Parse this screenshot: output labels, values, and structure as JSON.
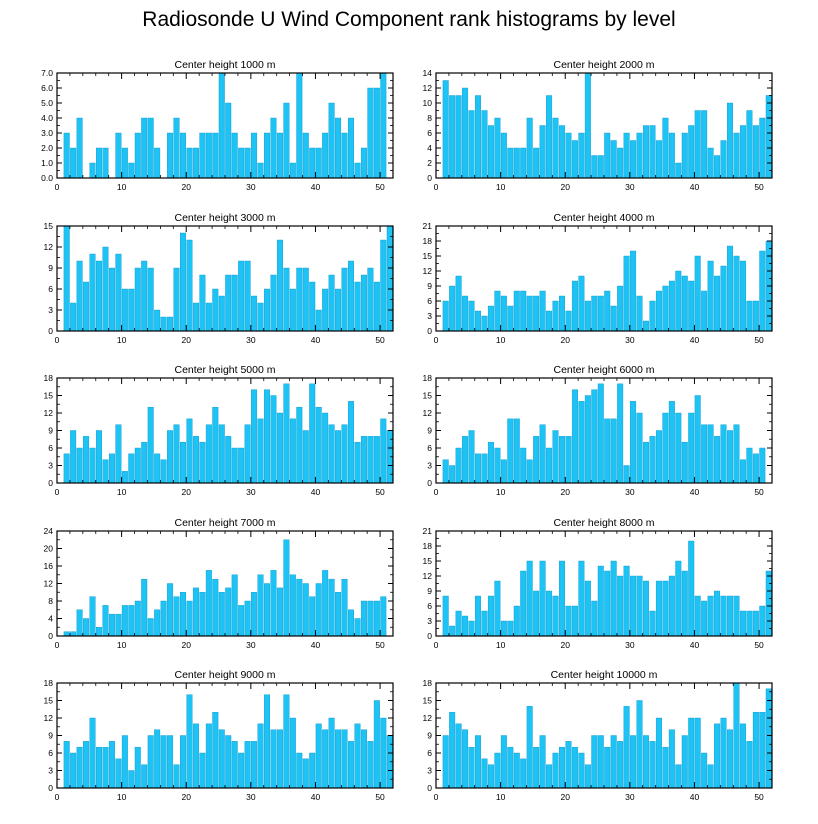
{
  "title": "Radiosonde U Wind Component rank histograms by level",
  "colors": {
    "bar": "#1ec3f5",
    "bar_edge": "#0b95c8",
    "axis": "#000000"
  },
  "chart_data": [
    {
      "type": "bar",
      "title": "Center height 1000 m",
      "ylim": [
        0,
        7
      ],
      "yticks": [
        "0.0",
        "1.0",
        "2.0",
        "3.0",
        "4.0",
        "5.0",
        "6.0",
        "7.0"
      ],
      "xlim": [
        0,
        52
      ],
      "xticks": [
        "0",
        "10",
        "20",
        "30",
        "40",
        "50"
      ],
      "x": [
        0,
        1,
        2,
        3,
        4,
        5,
        6,
        7,
        8,
        9,
        10,
        11,
        12,
        13,
        14,
        15,
        16,
        17,
        18,
        19,
        20,
        21,
        22,
        23,
        24,
        25,
        26,
        27,
        28,
        29,
        30,
        31,
        32,
        33,
        34,
        35,
        36,
        37,
        38,
        39,
        40,
        41,
        42,
        43,
        44,
        45,
        46,
        47,
        48,
        49,
        50,
        51
      ],
      "values": [
        0,
        3,
        2,
        4,
        0,
        1,
        2,
        2,
        0,
        3,
        2,
        1,
        3,
        4,
        4,
        2,
        0,
        3,
        4,
        3,
        2,
        2,
        3,
        3,
        3,
        7,
        5,
        3,
        2,
        2,
        3,
        1,
        3,
        4,
        3,
        5,
        1,
        7,
        3,
        2,
        2,
        3,
        5,
        4,
        3,
        4,
        1,
        2,
        6,
        6,
        7,
        0
      ]
    },
    {
      "type": "bar",
      "title": "Center height 2000 m",
      "ylim": [
        0,
        14
      ],
      "yticks": [
        "0",
        "2",
        "4",
        "6",
        "8",
        "10",
        "12",
        "14"
      ],
      "xlim": [
        0,
        52
      ],
      "xticks": [
        "0",
        "10",
        "20",
        "30",
        "40",
        "50"
      ],
      "x": [
        0,
        1,
        2,
        3,
        4,
        5,
        6,
        7,
        8,
        9,
        10,
        11,
        12,
        13,
        14,
        15,
        16,
        17,
        18,
        19,
        20,
        21,
        22,
        23,
        24,
        25,
        26,
        27,
        28,
        29,
        30,
        31,
        32,
        33,
        34,
        35,
        36,
        37,
        38,
        39,
        40,
        41,
        42,
        43,
        44,
        45,
        46,
        47,
        48,
        49,
        50,
        51
      ],
      "values": [
        0,
        13,
        11,
        11,
        12,
        9,
        11,
        9,
        7,
        8,
        6,
        4,
        4,
        4,
        8,
        4,
        7,
        11,
        8,
        7,
        6,
        5,
        6,
        14,
        3,
        3,
        6,
        5,
        4,
        6,
        5,
        6,
        7,
        7,
        5,
        8,
        6,
        2,
        6,
        7,
        9,
        9,
        4,
        3,
        5,
        10,
        6,
        7,
        9,
        7,
        8,
        11
      ]
    },
    {
      "type": "bar",
      "title": "Center height 3000 m",
      "ylim": [
        0,
        15
      ],
      "yticks": [
        "0",
        "3",
        "6",
        "9",
        "12",
        "15"
      ],
      "xlim": [
        0,
        52
      ],
      "xticks": [
        "0",
        "10",
        "20",
        "30",
        "40",
        "50"
      ],
      "x": [
        0,
        1,
        2,
        3,
        4,
        5,
        6,
        7,
        8,
        9,
        10,
        11,
        12,
        13,
        14,
        15,
        16,
        17,
        18,
        19,
        20,
        21,
        22,
        23,
        24,
        25,
        26,
        27,
        28,
        29,
        30,
        31,
        32,
        33,
        34,
        35,
        36,
        37,
        38,
        39,
        40,
        41,
        42,
        43,
        44,
        45,
        46,
        47,
        48,
        49,
        50,
        51
      ],
      "values": [
        0,
        15,
        4,
        10,
        7,
        11,
        10,
        12,
        9,
        11,
        6,
        6,
        9,
        10,
        9,
        3,
        2,
        2,
        9,
        14,
        13,
        4,
        8,
        4,
        6,
        5,
        8,
        8,
        10,
        10,
        5,
        4,
        6,
        8,
        13,
        9,
        6,
        9,
        9,
        7,
        3,
        6,
        8,
        6,
        9,
        10,
        7,
        8,
        9,
        7,
        13,
        15
      ]
    },
    {
      "type": "bar",
      "title": "Center height 4000 m",
      "ylim": [
        0,
        21
      ],
      "yticks": [
        "0",
        "3",
        "6",
        "9",
        "12",
        "15",
        "18",
        "21"
      ],
      "xlim": [
        0,
        52
      ],
      "xticks": [
        "0",
        "10",
        "20",
        "30",
        "40",
        "50"
      ],
      "x": [
        0,
        1,
        2,
        3,
        4,
        5,
        6,
        7,
        8,
        9,
        10,
        11,
        12,
        13,
        14,
        15,
        16,
        17,
        18,
        19,
        20,
        21,
        22,
        23,
        24,
        25,
        26,
        27,
        28,
        29,
        30,
        31,
        32,
        33,
        34,
        35,
        36,
        37,
        38,
        39,
        40,
        41,
        42,
        43,
        44,
        45,
        46,
        47,
        48,
        49,
        50,
        51
      ],
      "values": [
        0,
        6,
        9,
        11,
        7,
        6,
        4,
        3,
        5,
        8,
        7,
        5,
        8,
        8,
        7,
        7,
        8,
        4,
        6,
        7,
        4,
        10,
        11,
        6,
        7,
        7,
        8,
        5,
        9,
        15,
        16,
        7,
        2,
        6,
        8,
        9,
        10,
        12,
        11,
        10,
        15,
        8,
        14,
        11,
        13,
        17,
        15,
        14,
        6,
        6,
        16,
        18
      ]
    },
    {
      "type": "bar",
      "title": "Center height 5000 m",
      "ylim": [
        0,
        18
      ],
      "yticks": [
        "0",
        "3",
        "6",
        "9",
        "12",
        "15",
        "18"
      ],
      "xlim": [
        0,
        52
      ],
      "xticks": [
        "0",
        "10",
        "20",
        "30",
        "40",
        "50"
      ],
      "x": [
        0,
        1,
        2,
        3,
        4,
        5,
        6,
        7,
        8,
        9,
        10,
        11,
        12,
        13,
        14,
        15,
        16,
        17,
        18,
        19,
        20,
        21,
        22,
        23,
        24,
        25,
        26,
        27,
        28,
        29,
        30,
        31,
        32,
        33,
        34,
        35,
        36,
        37,
        38,
        39,
        40,
        41,
        42,
        43,
        44,
        45,
        46,
        47,
        48,
        49,
        50,
        51
      ],
      "values": [
        0,
        5,
        9,
        6,
        8,
        6,
        9,
        4,
        5,
        10,
        2,
        5,
        6,
        7,
        13,
        5,
        4,
        9,
        10,
        7,
        11,
        8,
        7,
        10,
        13,
        10,
        8,
        6,
        6,
        10,
        16,
        11,
        16,
        15,
        12,
        17,
        11,
        13,
        9,
        17,
        13,
        12,
        10,
        9,
        10,
        14,
        7,
        8,
        8,
        8,
        11,
        9
      ]
    },
    {
      "type": "bar",
      "title": "Center height 6000 m",
      "ylim": [
        0,
        18
      ],
      "yticks": [
        "0",
        "3",
        "6",
        "9",
        "12",
        "15",
        "18"
      ],
      "xlim": [
        0,
        52
      ],
      "xticks": [
        "0",
        "10",
        "20",
        "30",
        "40",
        "50"
      ],
      "x": [
        0,
        1,
        2,
        3,
        4,
        5,
        6,
        7,
        8,
        9,
        10,
        11,
        12,
        13,
        14,
        15,
        16,
        17,
        18,
        19,
        20,
        21,
        22,
        23,
        24,
        25,
        26,
        27,
        28,
        29,
        30,
        31,
        32,
        33,
        34,
        35,
        36,
        37,
        38,
        39,
        40,
        41,
        42,
        43,
        44,
        45,
        46,
        47,
        48,
        49,
        50,
        51
      ],
      "values": [
        0,
        4,
        3,
        6,
        8,
        9,
        5,
        5,
        7,
        6,
        4,
        11,
        11,
        6,
        4,
        8,
        10,
        6,
        9,
        8,
        8,
        16,
        14,
        15,
        16,
        17,
        11,
        11,
        17,
        3,
        14,
        12,
        7,
        8,
        9,
        12,
        14,
        12,
        7,
        12,
        15,
        10,
        10,
        8,
        10,
        9,
        10,
        4,
        6,
        5,
        6,
        0
      ]
    },
    {
      "type": "bar",
      "title": "Center height 7000 m",
      "ylim": [
        0,
        24
      ],
      "yticks": [
        "0",
        "4",
        "8",
        "12",
        "16",
        "20",
        "24"
      ],
      "xlim": [
        0,
        52
      ],
      "xticks": [
        "0",
        "10",
        "20",
        "30",
        "40",
        "50"
      ],
      "x": [
        0,
        1,
        2,
        3,
        4,
        5,
        6,
        7,
        8,
        9,
        10,
        11,
        12,
        13,
        14,
        15,
        16,
        17,
        18,
        19,
        20,
        21,
        22,
        23,
        24,
        25,
        26,
        27,
        28,
        29,
        30,
        31,
        32,
        33,
        34,
        35,
        36,
        37,
        38,
        39,
        40,
        41,
        42,
        43,
        44,
        45,
        46,
        47,
        48,
        49,
        50,
        51
      ],
      "values": [
        0,
        1,
        1,
        6,
        4,
        9,
        2,
        7,
        5,
        5,
        7,
        7,
        8,
        13,
        4,
        6,
        8,
        12,
        9,
        10,
        8,
        11,
        10,
        15,
        13,
        10,
        11,
        14,
        7,
        8,
        10,
        14,
        12,
        15,
        11,
        22,
        14,
        13,
        12,
        9,
        12,
        15,
        13,
        10,
        13,
        6,
        4,
        8,
        8,
        8,
        9,
        0
      ]
    },
    {
      "type": "bar",
      "title": "Center height 8000 m",
      "ylim": [
        0,
        21
      ],
      "yticks": [
        "0",
        "3",
        "6",
        "9",
        "12",
        "15",
        "18",
        "21"
      ],
      "xlim": [
        0,
        52
      ],
      "xticks": [
        "0",
        "10",
        "20",
        "30",
        "40",
        "50"
      ],
      "x": [
        0,
        1,
        2,
        3,
        4,
        5,
        6,
        7,
        8,
        9,
        10,
        11,
        12,
        13,
        14,
        15,
        16,
        17,
        18,
        19,
        20,
        21,
        22,
        23,
        24,
        25,
        26,
        27,
        28,
        29,
        30,
        31,
        32,
        33,
        34,
        35,
        36,
        37,
        38,
        39,
        40,
        41,
        42,
        43,
        44,
        45,
        46,
        47,
        48,
        49,
        50,
        51
      ],
      "values": [
        0,
        8,
        2,
        5,
        4,
        3,
        8,
        5,
        8,
        11,
        3,
        3,
        6,
        13,
        15,
        9,
        15,
        9,
        8,
        15,
        6,
        6,
        15,
        11,
        7,
        14,
        13,
        15,
        12,
        14,
        12,
        12,
        11,
        5,
        11,
        11,
        12,
        15,
        13,
        19,
        8,
        7,
        8,
        9,
        8,
        8,
        8,
        5,
        5,
        5,
        6,
        13
      ]
    },
    {
      "type": "bar",
      "title": "Center height 9000 m",
      "ylim": [
        0,
        18
      ],
      "yticks": [
        "0",
        "3",
        "6",
        "9",
        "12",
        "15",
        "18"
      ],
      "xlim": [
        0,
        52
      ],
      "xticks": [
        "0",
        "10",
        "20",
        "30",
        "40",
        "50"
      ],
      "x": [
        0,
        1,
        2,
        3,
        4,
        5,
        6,
        7,
        8,
        9,
        10,
        11,
        12,
        13,
        14,
        15,
        16,
        17,
        18,
        19,
        20,
        21,
        22,
        23,
        24,
        25,
        26,
        27,
        28,
        29,
        30,
        31,
        32,
        33,
        34,
        35,
        36,
        37,
        38,
        39,
        40,
        41,
        42,
        43,
        44,
        45,
        46,
        47,
        48,
        49,
        50,
        51
      ],
      "values": [
        0,
        8,
        6,
        7,
        8,
        12,
        7,
        7,
        8,
        5,
        9,
        3,
        7,
        4,
        9,
        10,
        9,
        9,
        4,
        9,
        16,
        11,
        6,
        11,
        13,
        10,
        9,
        8,
        6,
        8,
        8,
        11,
        16,
        10,
        10,
        16,
        12,
        6,
        5,
        6,
        11,
        10,
        12,
        10,
        10,
        8,
        11,
        10,
        8,
        15,
        12,
        9
      ]
    },
    {
      "type": "bar",
      "title": "Center height 10000 m",
      "ylim": [
        0,
        18
      ],
      "yticks": [
        "0",
        "3",
        "6",
        "9",
        "12",
        "15",
        "18"
      ],
      "xlim": [
        0,
        52
      ],
      "xticks": [
        "0",
        "10",
        "20",
        "30",
        "40",
        "50"
      ],
      "x": [
        0,
        1,
        2,
        3,
        4,
        5,
        6,
        7,
        8,
        9,
        10,
        11,
        12,
        13,
        14,
        15,
        16,
        17,
        18,
        19,
        20,
        21,
        22,
        23,
        24,
        25,
        26,
        27,
        28,
        29,
        30,
        31,
        32,
        33,
        34,
        35,
        36,
        37,
        38,
        39,
        40,
        41,
        42,
        43,
        44,
        45,
        46,
        47,
        48,
        49,
        50,
        51
      ],
      "values": [
        0,
        9,
        13,
        11,
        10,
        7,
        9,
        5,
        4,
        6,
        9,
        7,
        6,
        5,
        14,
        7,
        9,
        4,
        6,
        7,
        8,
        7,
        6,
        4,
        9,
        9,
        7,
        9,
        8,
        14,
        9,
        15,
        9,
        8,
        12,
        7,
        10,
        4,
        9,
        12,
        12,
        6,
        4,
        11,
        12,
        10,
        18,
        11,
        8,
        13,
        13,
        17
      ]
    }
  ]
}
